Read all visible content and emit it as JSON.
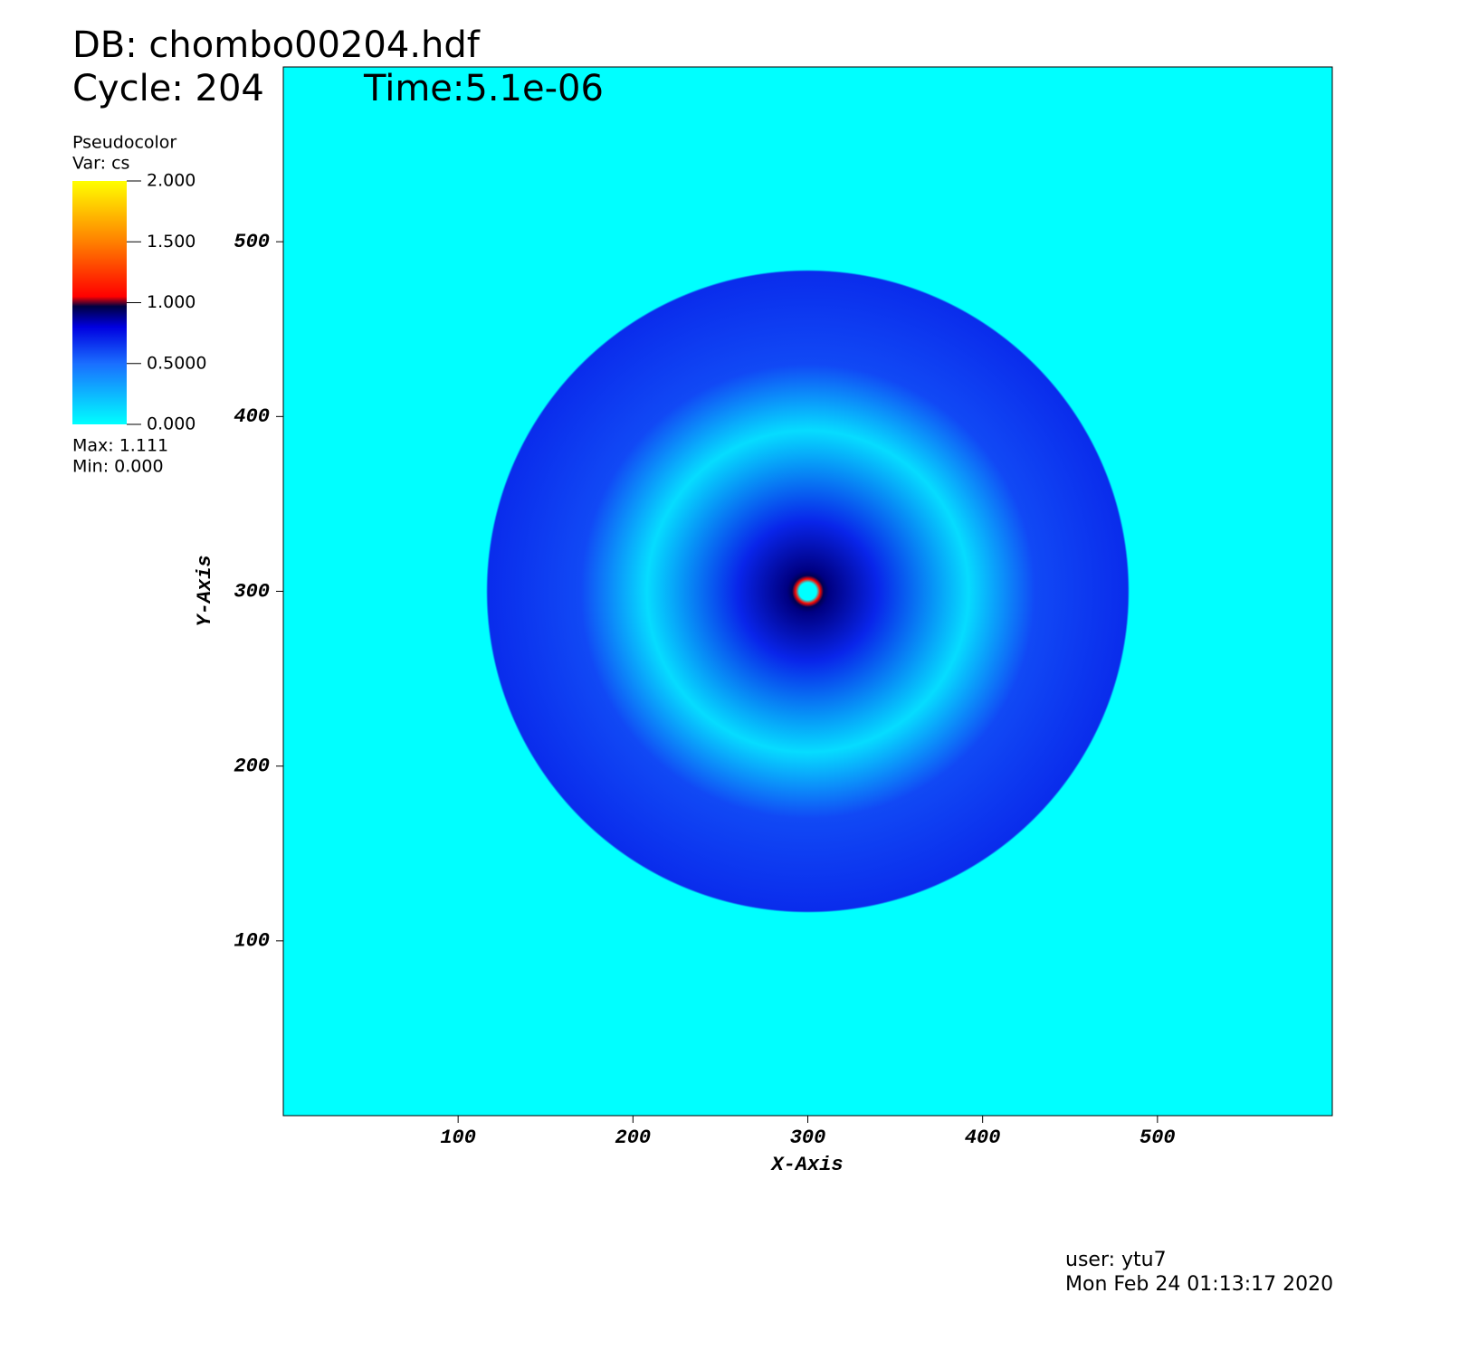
{
  "chart_data": {
    "type": "pseudocolor",
    "db": "DB: chombo00204.hdf",
    "cycle": "Cycle: 204",
    "time": "Time:5.1e-06",
    "xlabel": "X-Axis",
    "ylabel": "Y-Axis",
    "xlim": [
      0,
      600
    ],
    "ylim": [
      0,
      600
    ],
    "xticks": [
      100,
      200,
      300,
      400,
      500
    ],
    "yticks": [
      100,
      200,
      300,
      400,
      500
    ],
    "background_color": "#00ffff",
    "legend": {
      "title": "Pseudocolor",
      "var": "Var: cs",
      "clim": [
        0,
        2
      ],
      "ticks": [
        {
          "value": 0,
          "label": "0.000"
        },
        {
          "value": 0.5,
          "label": "0.5000"
        },
        {
          "value": 1,
          "label": "1.000"
        },
        {
          "value": 1.5,
          "label": "1.500"
        },
        {
          "value": 2,
          "label": "2.000"
        }
      ],
      "max": "Max:  1.111",
      "min": "Min:  0.000"
    },
    "colormap": [
      {
        "value": 0,
        "color": "#00ffff"
      },
      {
        "value": 0.5,
        "color": "#1a6eff"
      },
      {
        "value": 0.8,
        "color": "#0000e0"
      },
      {
        "value": 0.97,
        "color": "#000040"
      },
      {
        "value": 1.05,
        "color": "#ff0000"
      },
      {
        "value": 1.5,
        "color": "#ff8000"
      },
      {
        "value": 2,
        "color": "#ffff00"
      }
    ],
    "field": {
      "center": [
        300,
        300
      ],
      "radial_profile": {
        "r": [
          0,
          5,
          7,
          9,
          12,
          40,
          92,
          130,
          183,
          184
        ],
        "values": [
          0,
          0,
          1.08,
          0.95,
          0.9,
          0.7,
          0.12,
          0.6,
          0.68,
          0
        ]
      }
    },
    "user": "user: ytu7",
    "date": "Mon Feb 24 01:13:17 2020"
  }
}
